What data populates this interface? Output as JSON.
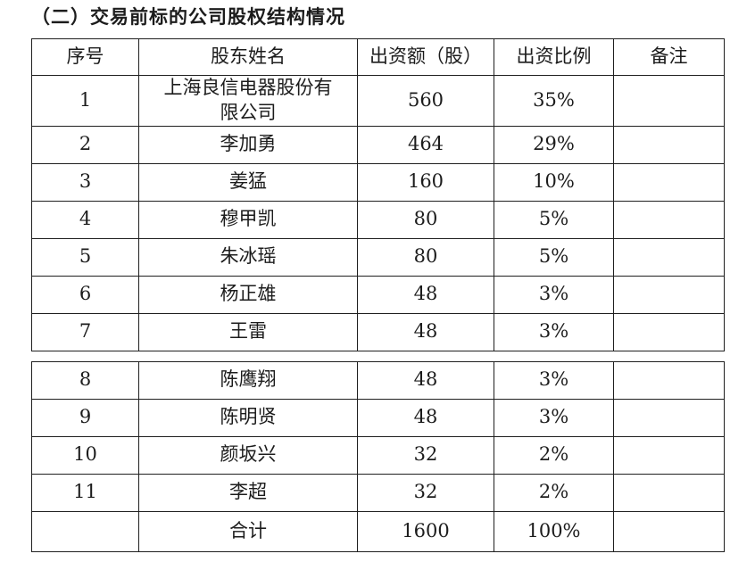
{
  "title": "（二）交易前标的公司股权结构情况",
  "table": {
    "headers": [
      "序号",
      "股东姓名",
      "出资额（股）",
      "出资比例",
      "备注"
    ],
    "section_break": 7,
    "rows": [
      {
        "no": "1",
        "name": "上海良信电器股份有限公司",
        "amount": "560",
        "ratio": "35%",
        "note": ""
      },
      {
        "no": "2",
        "name": "李加勇",
        "amount": "464",
        "ratio": "29%",
        "note": ""
      },
      {
        "no": "3",
        "name": "姜猛",
        "amount": "160",
        "ratio": "10%",
        "note": ""
      },
      {
        "no": "4",
        "name": "穆甲凯",
        "amount": "80",
        "ratio": "5%",
        "note": ""
      },
      {
        "no": "5",
        "name": "朱冰瑶",
        "amount": "80",
        "ratio": "5%",
        "note": ""
      },
      {
        "no": "6",
        "name": "杨正雄",
        "amount": "48",
        "ratio": "3%",
        "note": ""
      },
      {
        "no": "7",
        "name": "王雷",
        "amount": "48",
        "ratio": "3%",
        "note": ""
      },
      {
        "no": "8",
        "name": "陈鹰翔",
        "amount": "48",
        "ratio": "3%",
        "note": ""
      },
      {
        "no": "9",
        "name": "陈明贤",
        "amount": "48",
        "ratio": "3%",
        "note": ""
      },
      {
        "no": "10",
        "name": "颜坂兴",
        "amount": "32",
        "ratio": "2%",
        "note": ""
      },
      {
        "no": "11",
        "name": "李超",
        "amount": "32",
        "ratio": "2%",
        "note": ""
      },
      {
        "no": "",
        "name": "合计",
        "amount": "1600",
        "ratio": "100%",
        "note": ""
      }
    ]
  }
}
